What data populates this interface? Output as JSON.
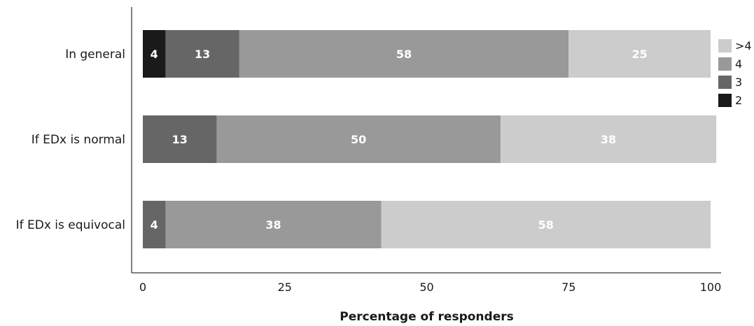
{
  "chart_data": {
    "type": "bar",
    "orientation": "horizontal",
    "stacked": true,
    "categories": [
      "In general",
      "If EDx is normal",
      "If EDx is equivocal"
    ],
    "series": [
      {
        "name": "2",
        "color": "#1a1a1a",
        "values": [
          4,
          0,
          0
        ]
      },
      {
        "name": "3",
        "color": "#666666",
        "values": [
          13,
          13,
          4
        ]
      },
      {
        "name": "4",
        "color": "#999999",
        "values": [
          58,
          50,
          38
        ]
      },
      {
        "name": ">4",
        "color": "#cccccc",
        "values": [
          25,
          38,
          58
        ]
      }
    ],
    "legend_order": [
      ">4",
      "4",
      "3",
      "2"
    ],
    "legend_position": "right",
    "xlabel": "Percentage of responders",
    "ylabel": "",
    "xlim": [
      0,
      100
    ],
    "xticks": [
      0,
      25,
      50,
      75,
      100
    ],
    "grid": false
  }
}
